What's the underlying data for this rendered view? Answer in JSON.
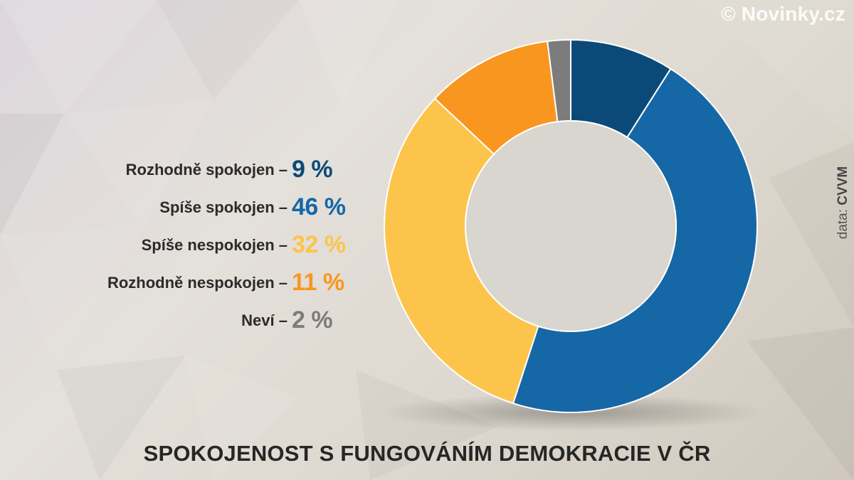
{
  "watermark": "© Novinky.cz",
  "source": {
    "prefix": "data:",
    "value": "CVVM"
  },
  "chart_data": {
    "type": "pie",
    "title": "SPOKOJENOST S FUNGOVÁNÍM DEMOKRACIE V ČR",
    "donut": true,
    "unit": "%",
    "categories": [
      "Rozhodně spokojen",
      "Spíše spokojen",
      "Spíše nespokojen",
      "Rozhodně nespokojen",
      "Neví"
    ],
    "values": [
      9,
      46,
      32,
      11,
      2
    ],
    "value_labels": [
      "9 %",
      "46 %",
      "32 %",
      "11 %",
      "2 %"
    ],
    "colors": [
      "#0b4a78",
      "#1667a6",
      "#fcc44a",
      "#f9961f",
      "#7c7c7c"
    ],
    "legend_suffix": " –"
  }
}
